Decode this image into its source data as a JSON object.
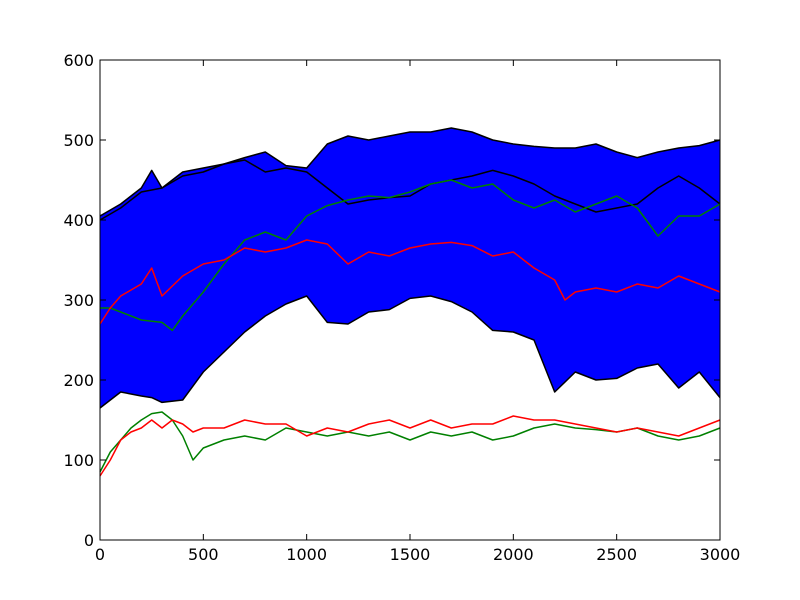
{
  "chart_data": {
    "type": "line",
    "title": "",
    "xlabel": "",
    "ylabel": "",
    "xlim": [
      0,
      3000
    ],
    "ylim": [
      0,
      600
    ],
    "grid": false,
    "x_ticks": [
      0,
      500,
      1000,
      1500,
      2000,
      2500,
      3000
    ],
    "y_ticks": [
      0,
      100,
      200,
      300,
      400,
      500,
      600
    ],
    "band": {
      "color": "#0000ff",
      "edge_color": "#000000",
      "x": [
        0,
        100,
        200,
        250,
        300,
        400,
        500,
        600,
        700,
        800,
        900,
        1000,
        1100,
        1200,
        1300,
        1400,
        1500,
        1600,
        1700,
        1800,
        1900,
        2000,
        2100,
        2200,
        2300,
        2400,
        2500,
        2600,
        2700,
        2800,
        2900,
        3000
      ],
      "upper": [
        405,
        420,
        440,
        462,
        440,
        460,
        465,
        470,
        478,
        485,
        468,
        465,
        495,
        505,
        500,
        505,
        510,
        510,
        515,
        510,
        500,
        495,
        492,
        490,
        490,
        495,
        485,
        478,
        485,
        490,
        493,
        500
      ],
      "lower": [
        165,
        185,
        180,
        178,
        172,
        175,
        210,
        235,
        260,
        280,
        295,
        305,
        272,
        270,
        285,
        288,
        302,
        305,
        298,
        285,
        262,
        260,
        250,
        185,
        210,
        200,
        202,
        215,
        220,
        190,
        210,
        178
      ]
    },
    "series": [
      {
        "color": "#000000",
        "x": [
          0,
          100,
          200,
          300,
          400,
          500,
          600,
          700,
          800,
          900,
          1000,
          1100,
          1200,
          1300,
          1400,
          1500,
          1600,
          1700,
          1800,
          1900,
          2000,
          2100,
          2200,
          2300,
          2400,
          2500,
          2600,
          2700,
          2800,
          2900,
          3000
        ],
        "y": [
          400,
          415,
          435,
          440,
          455,
          460,
          470,
          475,
          460,
          465,
          460,
          440,
          420,
          425,
          428,
          430,
          445,
          450,
          455,
          462,
          455,
          445,
          430,
          420,
          410,
          415,
          420,
          440,
          455,
          440,
          420
        ]
      },
      {
        "color": "#008000",
        "x": [
          0,
          50,
          100,
          200,
          300,
          350,
          400,
          500,
          600,
          700,
          800,
          900,
          1000,
          1100,
          1200,
          1300,
          1400,
          1500,
          1600,
          1700,
          1800,
          1900,
          2000,
          2100,
          2200,
          2300,
          2400,
          2500,
          2600,
          2700,
          2800,
          2900,
          3000
        ],
        "y": [
          290,
          290,
          285,
          275,
          272,
          262,
          280,
          310,
          345,
          375,
          385,
          375,
          405,
          418,
          425,
          430,
          428,
          435,
          445,
          450,
          440,
          445,
          425,
          415,
          425,
          410,
          420,
          430,
          415,
          380,
          405,
          405,
          420
        ]
      },
      {
        "color": "#ff0000",
        "x": [
          0,
          50,
          100,
          200,
          250,
          300,
          400,
          500,
          600,
          700,
          800,
          900,
          1000,
          1100,
          1200,
          1300,
          1400,
          1500,
          1600,
          1700,
          1800,
          1900,
          2000,
          2100,
          2200,
          2250,
          2300,
          2400,
          2500,
          2600,
          2700,
          2800,
          2900,
          3000
        ],
        "y": [
          270,
          290,
          305,
          320,
          340,
          305,
          330,
          345,
          350,
          365,
          360,
          365,
          375,
          370,
          345,
          360,
          355,
          365,
          370,
          372,
          368,
          355,
          360,
          340,
          325,
          300,
          310,
          315,
          310,
          320,
          315,
          330,
          320,
          310
        ]
      },
      {
        "color": "#008000",
        "x": [
          0,
          50,
          100,
          150,
          200,
          250,
          300,
          350,
          400,
          450,
          500,
          600,
          700,
          800,
          900,
          1000,
          1100,
          1200,
          1300,
          1400,
          1500,
          1600,
          1700,
          1800,
          1900,
          2000,
          2100,
          2200,
          2300,
          2400,
          2500,
          2600,
          2700,
          2800,
          2900,
          3000
        ],
        "y": [
          85,
          110,
          125,
          140,
          150,
          158,
          160,
          150,
          130,
          100,
          115,
          125,
          130,
          125,
          140,
          135,
          130,
          135,
          130,
          135,
          125,
          135,
          130,
          135,
          125,
          130,
          140,
          145,
          140,
          138,
          135,
          140,
          130,
          125,
          130,
          140
        ]
      },
      {
        "color": "#ff0000",
        "x": [
          0,
          50,
          100,
          150,
          200,
          250,
          300,
          350,
          400,
          450,
          500,
          600,
          700,
          800,
          900,
          1000,
          1100,
          1200,
          1300,
          1400,
          1500,
          1600,
          1700,
          1800,
          1900,
          2000,
          2100,
          2200,
          2300,
          2400,
          2500,
          2600,
          2700,
          2800,
          2900,
          3000
        ],
        "y": [
          80,
          100,
          125,
          135,
          140,
          150,
          140,
          150,
          145,
          135,
          140,
          140,
          150,
          145,
          145,
          130,
          140,
          135,
          145,
          150,
          140,
          150,
          140,
          145,
          145,
          155,
          150,
          150,
          145,
          140,
          135,
          140,
          135,
          130,
          140,
          150
        ]
      }
    ]
  }
}
